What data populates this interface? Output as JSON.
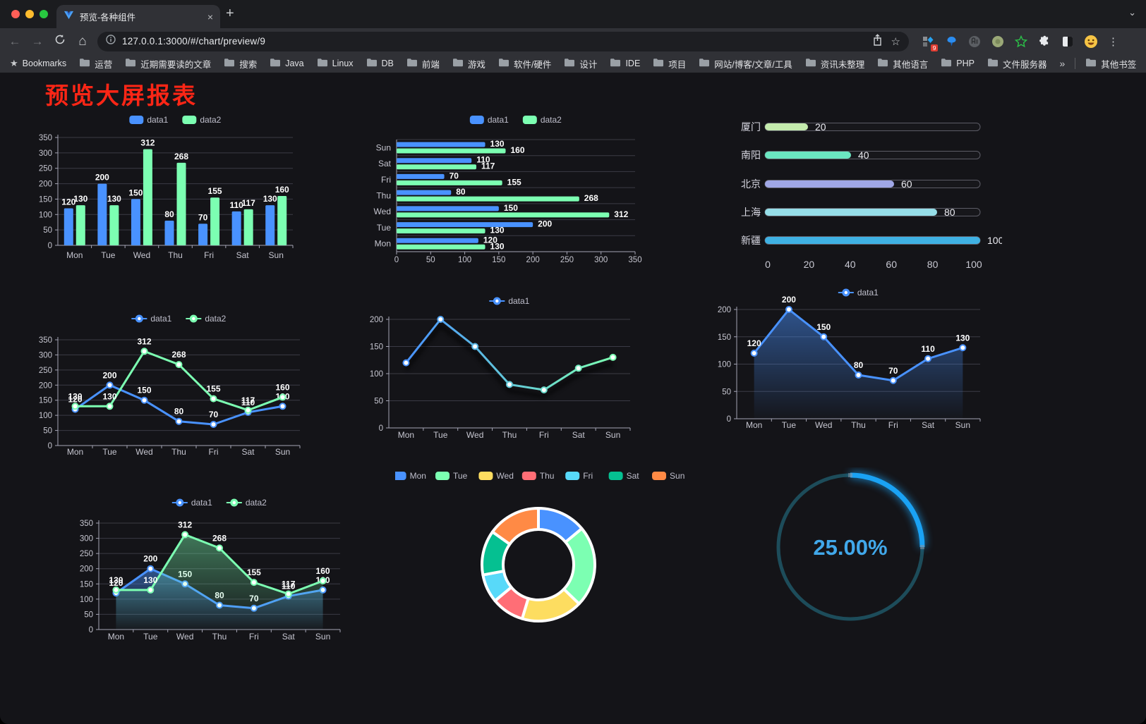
{
  "browser": {
    "tab_title": "预览-各种组件",
    "url": "127.0.0.1:3000/#/chart/preview/9",
    "extensions_badge": "9",
    "bookmarks_bar": {
      "manager_label": "Bookmarks",
      "folders": [
        "运营",
        "近期需要读的文章",
        "搜索",
        "Java",
        "Linux",
        "DB",
        "前端",
        "游戏",
        "软件/硬件",
        "设计",
        "IDE",
        "项目",
        "网站/博客/文章/工具",
        "资讯未整理",
        "其他语言",
        "PHP",
        "文件服务器"
      ],
      "overflow_label": "»",
      "other_bookmarks_label": "其他书签"
    }
  },
  "icons": {
    "back": "←",
    "forward": "→",
    "home": "⌂",
    "star_outline": "☆",
    "bookmarks_star": "★",
    "menu": "⋮",
    "close_tab": "×",
    "new_tab": "+",
    "chevron": "⌄"
  },
  "window_colors": {
    "close": "#ff5f57",
    "minimize": "#febc2e",
    "zoom": "#28c840"
  },
  "page": {
    "title": "预览大屏报表",
    "title_color": "#fb2616",
    "background": "#141418"
  },
  "palette": {
    "blue": "#4992ff",
    "green": "#7cffb2",
    "yellow": "#fddd60",
    "red": "#ff6e76",
    "cyan": "#58d9f9",
    "teal": "#05c091",
    "orange": "#ff8a45"
  },
  "chart_data": [
    {
      "id": "vertical-bar",
      "type": "bar",
      "legend": [
        "data1",
        "data2"
      ],
      "categories": [
        "Mon",
        "Tue",
        "Wed",
        "Thu",
        "Fri",
        "Sat",
        "Sun"
      ],
      "series": [
        {
          "name": "data1",
          "color": "#4992ff",
          "values": [
            120,
            200,
            150,
            80,
            70,
            110,
            130
          ]
        },
        {
          "name": "data2",
          "color": "#7cffb2",
          "values": [
            130,
            130,
            312,
            268,
            155,
            117,
            160
          ]
        }
      ],
      "ylim": [
        0,
        350
      ],
      "ystep": 50
    },
    {
      "id": "horizontal-bar",
      "type": "bar-horizontal",
      "legend": [
        "data1",
        "data2"
      ],
      "categories": [
        "Mon",
        "Tue",
        "Wed",
        "Thu",
        "Fri",
        "Sat",
        "Sun"
      ],
      "series": [
        {
          "name": "data1",
          "color": "#4992ff",
          "values": [
            120,
            200,
            150,
            80,
            70,
            110,
            130
          ]
        },
        {
          "name": "data2",
          "color": "#7cffb2",
          "values": [
            130,
            130,
            312,
            268,
            155,
            117,
            160
          ]
        }
      ],
      "xlim": [
        0,
        350
      ],
      "xstep": 50
    },
    {
      "id": "progress-bars",
      "type": "progress",
      "xlim": [
        0,
        100
      ],
      "ticks": [
        0,
        20,
        40,
        60,
        80,
        100
      ],
      "items": [
        {
          "label": "厦门",
          "value": 20,
          "color": "#c4ebad"
        },
        {
          "label": "南阳",
          "value": 40,
          "color": "#6be6c1"
        },
        {
          "label": "北京",
          "value": 60,
          "color": "#a0a7e6"
        },
        {
          "label": "上海",
          "value": 80,
          "color": "#96dee8"
        },
        {
          "label": "新疆",
          "value": 100,
          "color": "#3fb1e3"
        }
      ]
    },
    {
      "id": "two-line",
      "type": "line",
      "legend": [
        "data1",
        "data2"
      ],
      "labels": true,
      "categories": [
        "Mon",
        "Tue",
        "Wed",
        "Thu",
        "Fri",
        "Sat",
        "Sun"
      ],
      "series": [
        {
          "name": "data1",
          "color": "#4992ff",
          "values": [
            120,
            200,
            150,
            80,
            70,
            110,
            130
          ]
        },
        {
          "name": "data2",
          "color": "#7cffb2",
          "values": [
            130,
            130,
            312,
            268,
            155,
            117,
            160
          ]
        }
      ],
      "ylim": [
        0,
        350
      ],
      "ystep": 50
    },
    {
      "id": "gradient-line",
      "type": "line",
      "legend": [
        "data1"
      ],
      "labels": false,
      "gradient": true,
      "shadow": true,
      "categories": [
        "Mon",
        "Tue",
        "Wed",
        "Thu",
        "Fri",
        "Sat",
        "Sun"
      ],
      "series": [
        {
          "name": "data1",
          "color": "#4992ff",
          "color2": "#7cffb2",
          "values": [
            120,
            200,
            150,
            80,
            70,
            110,
            130
          ]
        }
      ],
      "ylim": [
        0,
        200
      ],
      "ystep": 50
    },
    {
      "id": "area-line",
      "type": "line",
      "legend": [
        "data1"
      ],
      "labels": true,
      "area": true,
      "categories": [
        "Mon",
        "Tue",
        "Wed",
        "Thu",
        "Fri",
        "Sat",
        "Sun"
      ],
      "series": [
        {
          "name": "data1",
          "color": "#4992ff",
          "values": [
            120,
            200,
            150,
            80,
            70,
            110,
            130
          ]
        }
      ],
      "ylim": [
        0,
        200
      ],
      "ystep": 50
    },
    {
      "id": "two-area-line",
      "type": "line",
      "legend": [
        "data1",
        "data2"
      ],
      "labels": true,
      "area": true,
      "categories": [
        "Mon",
        "Tue",
        "Wed",
        "Thu",
        "Fri",
        "Sat",
        "Sun"
      ],
      "series": [
        {
          "name": "data1",
          "color": "#4992ff",
          "values": [
            120,
            200,
            150,
            80,
            70,
            110,
            130
          ]
        },
        {
          "name": "data2",
          "color": "#7cffb2",
          "values": [
            130,
            130,
            312,
            268,
            155,
            117,
            160
          ]
        }
      ],
      "ylim": [
        0,
        350
      ],
      "ystep": 50
    },
    {
      "id": "donut",
      "type": "pie",
      "categories": [
        "Mon",
        "Tue",
        "Wed",
        "Thu",
        "Fri",
        "Sat",
        "Sun"
      ],
      "values": [
        120,
        200,
        150,
        80,
        70,
        110,
        130
      ],
      "colors": [
        "#4992ff",
        "#7cffb2",
        "#fddd60",
        "#ff6e76",
        "#58d9f9",
        "#05c091",
        "#ff8a45"
      ]
    },
    {
      "id": "gauge",
      "type": "gauge",
      "value": 25,
      "label": "25.00%",
      "color": "#1aa2f4",
      "track_color": "#1d4c5a",
      "text_color": "#41a8ea"
    }
  ]
}
